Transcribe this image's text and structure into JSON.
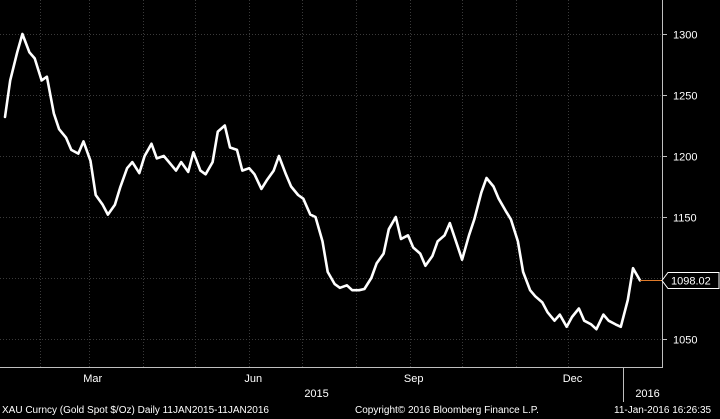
{
  "chart_data": {
    "type": "line",
    "title": "",
    "xlabel": "",
    "ylabel": "",
    "ylim": [
      1040,
      1320
    ],
    "y_ticks": [
      1050,
      1100,
      1150,
      1200,
      1250,
      1300
    ],
    "x_tick_labels": [
      "Mar",
      "Jun",
      "Sep",
      "Dec"
    ],
    "year_labels": [
      "2015",
      "2016"
    ],
    "last_value_label": "1098.02",
    "grid": true,
    "colors": {
      "background": "#000000",
      "line": "#ffffff",
      "grid": "#3a3a3a",
      "last_marker": "#e07b2a"
    },
    "series": [
      {
        "x": [
          "2015-01-12",
          "2015-01-15",
          "2015-01-19",
          "2015-01-22",
          "2015-01-26",
          "2015-01-29",
          "2015-02-02",
          "2015-02-05",
          "2015-02-09",
          "2015-02-12",
          "2015-02-16",
          "2015-02-19",
          "2015-02-23",
          "2015-02-26",
          "2015-03-02",
          "2015-03-05",
          "2015-03-09",
          "2015-03-12",
          "2015-03-16",
          "2015-03-19",
          "2015-03-23",
          "2015-03-26",
          "2015-03-30",
          "2015-04-02",
          "2015-04-06",
          "2015-04-09",
          "2015-04-13",
          "2015-04-16",
          "2015-04-20",
          "2015-04-23",
          "2015-04-27",
          "2015-04-30",
          "2015-05-04",
          "2015-05-07",
          "2015-05-11",
          "2015-05-14",
          "2015-05-18",
          "2015-05-21",
          "2015-05-25",
          "2015-05-28",
          "2015-06-01",
          "2015-06-04",
          "2015-06-08",
          "2015-06-11",
          "2015-06-15",
          "2015-06-18",
          "2015-06-22",
          "2015-06-25",
          "2015-06-29",
          "2015-07-02",
          "2015-07-06",
          "2015-07-09",
          "2015-07-13",
          "2015-07-16",
          "2015-07-20",
          "2015-07-23",
          "2015-07-27",
          "2015-07-30",
          "2015-08-03",
          "2015-08-06",
          "2015-08-10",
          "2015-08-13",
          "2015-08-17",
          "2015-08-20",
          "2015-08-24",
          "2015-08-27",
          "2015-08-31",
          "2015-09-03",
          "2015-09-07",
          "2015-09-10",
          "2015-09-14",
          "2015-09-17",
          "2015-09-21",
          "2015-09-24",
          "2015-09-28",
          "2015-10-01",
          "2015-10-05",
          "2015-10-08",
          "2015-10-12",
          "2015-10-15",
          "2015-10-19",
          "2015-10-22",
          "2015-10-26",
          "2015-10-29",
          "2015-11-02",
          "2015-11-05",
          "2015-11-09",
          "2015-11-12",
          "2015-11-16",
          "2015-11-19",
          "2015-11-23",
          "2015-11-26",
          "2015-11-30",
          "2015-12-03",
          "2015-12-07",
          "2015-12-10",
          "2015-12-14",
          "2015-12-17",
          "2015-12-21",
          "2015-12-24",
          "2015-12-28",
          "2015-12-31",
          "2016-01-04",
          "2016-01-07",
          "2016-01-11"
        ],
        "y": [
          1232,
          1262,
          1285,
          1300,
          1285,
          1280,
          1262,
          1265,
          1235,
          1222,
          1215,
          1205,
          1202,
          1212,
          1196,
          1168,
          1160,
          1152,
          1160,
          1174,
          1190,
          1195,
          1186,
          1200,
          1210,
          1198,
          1200,
          1195,
          1188,
          1195,
          1187,
          1203,
          1188,
          1185,
          1195,
          1220,
          1225,
          1207,
          1205,
          1188,
          1190,
          1185,
          1173,
          1180,
          1188,
          1200,
          1185,
          1175,
          1168,
          1165,
          1152,
          1150,
          1130,
          1105,
          1095,
          1092,
          1094,
          1090,
          1090,
          1091,
          1100,
          1112,
          1120,
          1140,
          1150,
          1132,
          1135,
          1125,
          1120,
          1110,
          1118,
          1130,
          1135,
          1145,
          1128,
          1115,
          1135,
          1148,
          1170,
          1182,
          1175,
          1165,
          1155,
          1148,
          1130,
          1105,
          1090,
          1085,
          1080,
          1072,
          1065,
          1070,
          1060,
          1068,
          1075,
          1065,
          1062,
          1058,
          1070,
          1065,
          1062,
          1060,
          1082,
          1108,
          1098
        ]
      }
    ]
  },
  "footer": {
    "left": "XAU Curncy (Gold Spot  $/Oz)  Daily 11JAN2015-11JAN2016",
    "center": "Copyright© 2016 Bloomberg Finance L.P.",
    "right": "11-Jan-2016 16:26:35"
  }
}
